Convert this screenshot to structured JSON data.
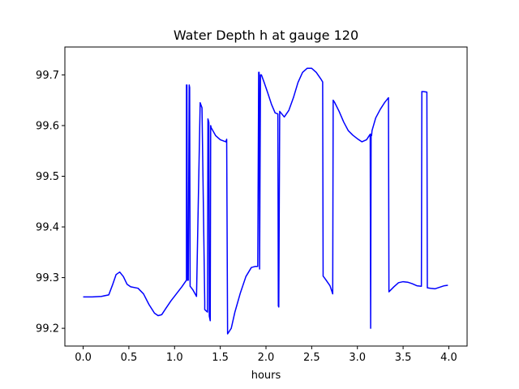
{
  "chart_data": {
    "type": "line",
    "title": "Water Depth h at gauge 120",
    "xlabel": "hours",
    "ylabel": "",
    "xlim": [
      -0.2,
      4.2
    ],
    "ylim": [
      99.165,
      99.755
    ],
    "xticks": [
      0.0,
      0.5,
      1.0,
      1.5,
      2.0,
      2.5,
      3.0,
      3.5,
      4.0
    ],
    "xtick_labels": [
      "0.0",
      "0.5",
      "1.0",
      "1.5",
      "2.0",
      "2.5",
      "3.0",
      "3.5",
      "4.0"
    ],
    "yticks": [
      99.2,
      99.3,
      99.4,
      99.5,
      99.6,
      99.7
    ],
    "ytick_labels": [
      "99.2",
      "99.3",
      "99.4",
      "99.5",
      "99.6",
      "99.7"
    ],
    "grid": false,
    "series": [
      {
        "color": "#0000ff",
        "x": [
          0.0,
          0.1,
          0.2,
          0.28,
          0.32,
          0.36,
          0.4,
          0.44,
          0.48,
          0.52,
          0.6,
          0.66,
          0.72,
          0.78,
          0.82,
          0.86,
          0.9,
          0.96,
          1.02,
          1.08,
          1.13,
          1.13,
          1.135,
          1.14,
          1.15,
          1.16,
          1.165,
          1.17,
          1.2,
          1.24,
          1.28,
          1.29,
          1.3,
          1.33,
          1.33,
          1.36,
          1.365,
          1.37,
          1.375,
          1.38,
          1.39,
          1.395,
          1.4,
          1.45,
          1.5,
          1.56,
          1.57,
          1.58,
          1.62,
          1.66,
          1.72,
          1.78,
          1.84,
          1.88,
          1.91,
          1.92,
          1.925,
          1.93,
          1.94,
          1.95,
          1.98,
          2.02,
          2.06,
          2.1,
          2.13,
          2.135,
          2.14,
          2.15,
          2.2,
          2.25,
          2.3,
          2.35,
          2.4,
          2.45,
          2.5,
          2.55,
          2.6,
          2.62,
          2.625,
          2.65,
          2.7,
          2.73,
          2.735,
          2.75,
          2.8,
          2.85,
          2.9,
          2.95,
          3.0,
          3.05,
          3.1,
          3.14,
          3.145,
          3.15,
          3.155,
          3.16,
          3.2,
          3.25,
          3.3,
          3.34,
          3.345,
          3.4,
          3.45,
          3.5,
          3.55,
          3.6,
          3.65,
          3.7,
          3.705,
          3.72,
          3.76,
          3.765,
          3.8,
          3.85,
          3.9,
          3.95,
          3.99
        ],
        "y": [
          99.262,
          99.262,
          99.263,
          99.266,
          99.285,
          99.306,
          99.311,
          99.302,
          99.287,
          99.282,
          99.279,
          99.268,
          99.247,
          99.23,
          99.225,
          99.227,
          99.238,
          99.254,
          99.268,
          99.282,
          99.295,
          99.68,
          99.68,
          99.295,
          99.295,
          99.68,
          99.675,
          99.283,
          99.276,
          99.263,
          99.645,
          99.64,
          99.635,
          99.252,
          99.237,
          99.232,
          99.613,
          99.61,
          99.606,
          99.224,
          99.215,
          99.6,
          99.596,
          99.58,
          99.572,
          99.568,
          99.573,
          99.189,
          99.2,
          99.232,
          99.27,
          99.302,
          99.32,
          99.322,
          99.322,
          99.705,
          99.705,
          99.317,
          99.7,
          99.7,
          99.685,
          99.664,
          99.642,
          99.625,
          99.623,
          99.244,
          99.242,
          99.628,
          99.617,
          99.63,
          99.655,
          99.685,
          99.705,
          99.713,
          99.713,
          99.705,
          99.692,
          99.686,
          99.303,
          99.297,
          99.284,
          99.268,
          99.65,
          99.646,
          99.628,
          99.607,
          99.59,
          99.581,
          99.574,
          99.568,
          99.572,
          99.583,
          99.2,
          99.583,
          99.58,
          99.59,
          99.615,
          99.632,
          99.646,
          99.655,
          99.272,
          99.282,
          99.29,
          99.292,
          99.291,
          99.288,
          99.284,
          99.283,
          99.667,
          99.667,
          99.666,
          99.28,
          99.279,
          99.278,
          99.281,
          99.284,
          99.285
        ]
      }
    ]
  }
}
